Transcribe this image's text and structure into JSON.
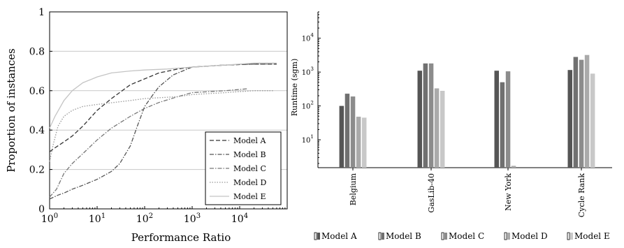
{
  "chart_data": [
    {
      "type": "line",
      "xlabel": "Performance Ratio",
      "ylabel": "Proportion of instances",
      "xscale": "log",
      "xlim": [
        1,
        100000
      ],
      "ylim": [
        0,
        1
      ],
      "x_tick_labels": [
        "10^0",
        "10^1",
        "10^2",
        "10^3",
        "10^4"
      ],
      "y_tick_labels": [
        "0",
        "0.2",
        "0.4",
        "0.6",
        "0.8",
        "1"
      ],
      "grid": "horizontal",
      "legend": {
        "placement": "bottom-right"
      },
      "series": [
        {
          "name": "Model A",
          "color": "#333333",
          "dash": "dashed",
          "points": [
            [
              1,
              0.29
            ],
            [
              1.3,
              0.31
            ],
            [
              2,
              0.34
            ],
            [
              3,
              0.37
            ],
            [
              5,
              0.42
            ],
            [
              10,
              0.5
            ],
            [
              20,
              0.56
            ],
            [
              50,
              0.63
            ],
            [
              100,
              0.66
            ],
            [
              200,
              0.69
            ],
            [
              500,
              0.71
            ],
            [
              1000,
              0.72
            ],
            [
              5000,
              0.73
            ],
            [
              20000,
              0.735
            ],
            [
              60000,
              0.735
            ]
          ]
        },
        {
          "name": "Model B",
          "color": "#555555",
          "dash": "dash-dot",
          "points": [
            [
              1,
              0.05
            ],
            [
              1.5,
              0.07
            ],
            [
              2,
              0.08
            ],
            [
              3,
              0.1
            ],
            [
              5,
              0.12
            ],
            [
              10,
              0.15
            ],
            [
              20,
              0.19
            ],
            [
              30,
              0.23
            ],
            [
              50,
              0.32
            ],
            [
              70,
              0.42
            ],
            [
              100,
              0.52
            ],
            [
              150,
              0.58
            ],
            [
              200,
              0.62
            ],
            [
              400,
              0.68
            ],
            [
              1000,
              0.72
            ],
            [
              5000,
              0.73
            ],
            [
              20000,
              0.735
            ],
            [
              60000,
              0.735
            ]
          ]
        },
        {
          "name": "Model C",
          "color": "#777777",
          "dash": "dash-dot",
          "points": [
            [
              1,
              0.06
            ],
            [
              1.4,
              0.1
            ],
            [
              2,
              0.18
            ],
            [
              3,
              0.23
            ],
            [
              5,
              0.28
            ],
            [
              10,
              0.35
            ],
            [
              20,
              0.41
            ],
            [
              50,
              0.47
            ],
            [
              100,
              0.51
            ],
            [
              200,
              0.54
            ],
            [
              500,
              0.57
            ],
            [
              1000,
              0.59
            ],
            [
              5000,
              0.6
            ],
            [
              15000,
              0.61
            ]
          ]
        },
        {
          "name": "Model D",
          "color": "#999999",
          "dash": "dotted",
          "points": [
            [
              1,
              0.24
            ],
            [
              1.2,
              0.33
            ],
            [
              1.5,
              0.42
            ],
            [
              2,
              0.47
            ],
            [
              3,
              0.5
            ],
            [
              5,
              0.52
            ],
            [
              10,
              0.53
            ],
            [
              50,
              0.55
            ],
            [
              100,
              0.56
            ],
            [
              500,
              0.57
            ],
            [
              1000,
              0.58
            ],
            [
              5000,
              0.59
            ],
            [
              20000,
              0.6
            ],
            [
              50000,
              0.6
            ]
          ]
        },
        {
          "name": "Model E",
          "color": "#c4c4c4",
          "dash": "solid",
          "points": [
            [
              1,
              0.41
            ],
            [
              1.3,
              0.47
            ],
            [
              2,
              0.55
            ],
            [
              3,
              0.6
            ],
            [
              5,
              0.64
            ],
            [
              10,
              0.67
            ],
            [
              20,
              0.69
            ],
            [
              50,
              0.7
            ],
            [
              100,
              0.705
            ],
            [
              300,
              0.71
            ],
            [
              1000,
              0.72
            ],
            [
              5000,
              0.73
            ],
            [
              20000,
              0.74
            ],
            [
              60000,
              0.74
            ]
          ]
        }
      ]
    },
    {
      "type": "bar",
      "ylabel": "Runtime (sgm)",
      "yscale": "log",
      "ylim": [
        1.5,
        60000
      ],
      "y_tick_labels": [
        "10^1",
        "10^2",
        "10^3",
        "10^4"
      ],
      "categories": [
        "Belgium",
        "GasLib-40",
        "New York",
        "Cycle Rank"
      ],
      "legend": {
        "placement": "bottom"
      },
      "series": [
        {
          "name": "Model A",
          "color": "#555555",
          "values": [
            100,
            1100,
            1100,
            1150
          ]
        },
        {
          "name": "Model B",
          "color": "#707070",
          "values": [
            230,
            1800,
            500,
            2800
          ]
        },
        {
          "name": "Model C",
          "color": "#8c8c8c",
          "values": [
            190,
            1800,
            1050,
            2300
          ]
        },
        {
          "name": "Model D",
          "color": "#aaaaaa",
          "values": [
            48,
            330,
            1.7,
            3200
          ]
        },
        {
          "name": "Model E",
          "color": "#c8c8c8",
          "values": [
            45,
            280,
            null,
            900
          ]
        }
      ]
    }
  ]
}
